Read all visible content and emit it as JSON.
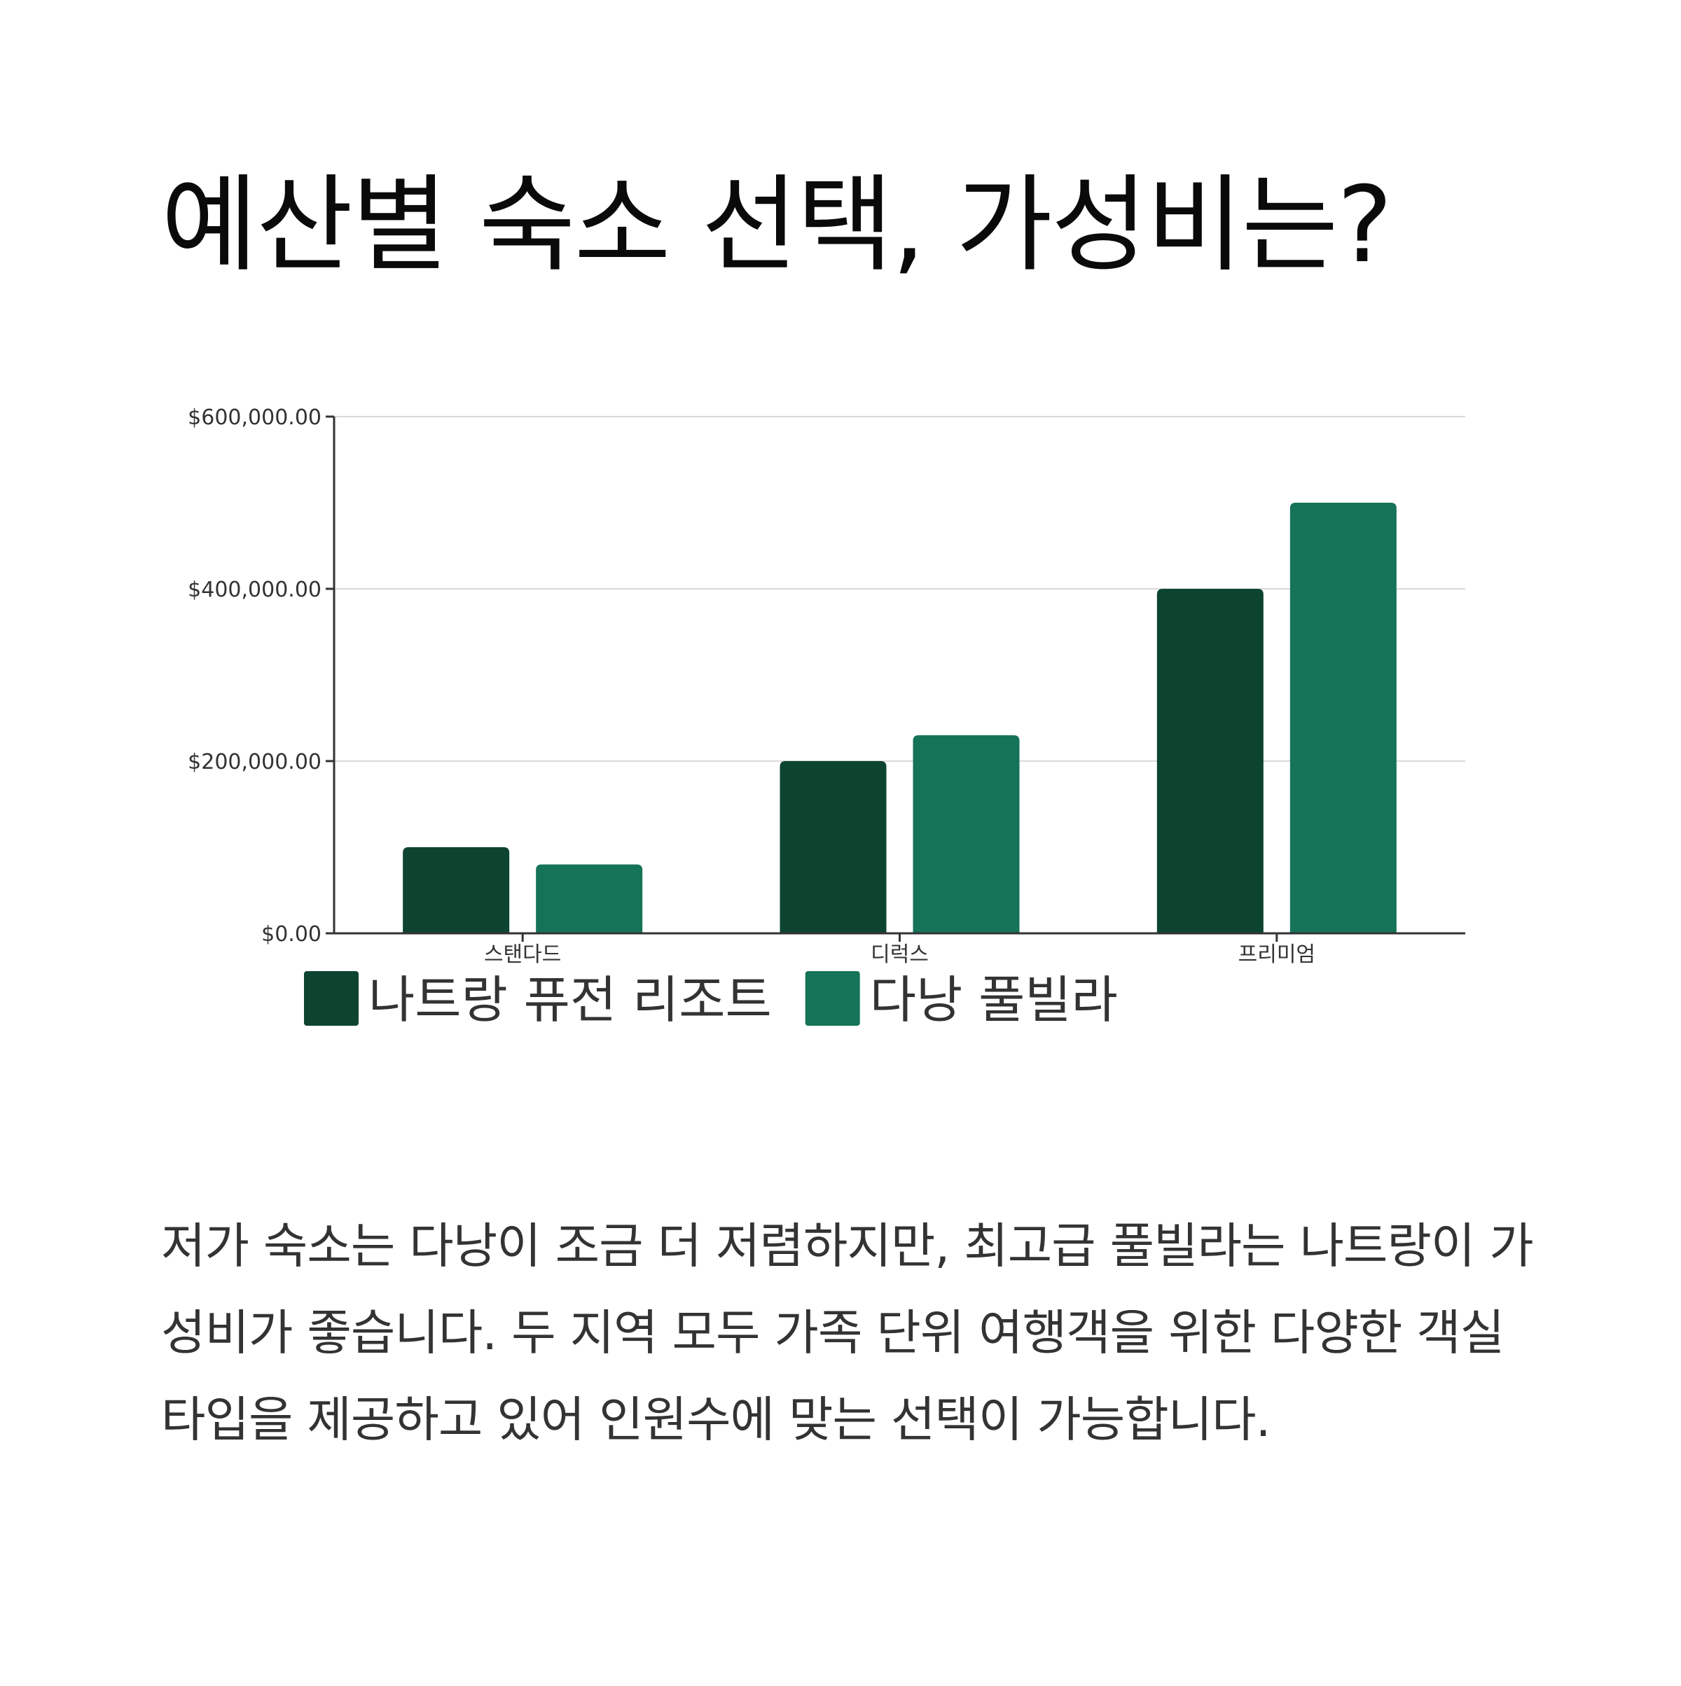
{
  "title": "예산별 숙소 선택, 가성비는?",
  "description": "저가 숙소는 다낭이 조금 더 저렴하지만, 최고급 풀빌라는 나트랑이 가성비가 좋습니다. 두 지역 모두 가족 단위 여행객을 위한 다양한 객실 타입을 제공하고 있어 인원수에 맞는 선택이 가능합니다.",
  "chart_data": {
    "type": "bar",
    "categories": [
      "스탠다드",
      "디럭스",
      "프리미엄"
    ],
    "series": [
      {
        "name": "나트랑 퓨전 리조트",
        "color": "#0d4430",
        "values": [
          100000,
          200000,
          400000
        ]
      },
      {
        "name": "다낭 풀빌라",
        "color": "#157357",
        "values": [
          80000,
          230000,
          500000
        ]
      }
    ],
    "yticks": [
      "$0.00",
      "$200,000.00",
      "$400,000.00",
      "$600,000.00"
    ],
    "ytick_values": [
      0,
      200000,
      400000,
      600000
    ],
    "ylim": [
      0,
      600000
    ],
    "grid": true,
    "legend": "bottom-left"
  }
}
